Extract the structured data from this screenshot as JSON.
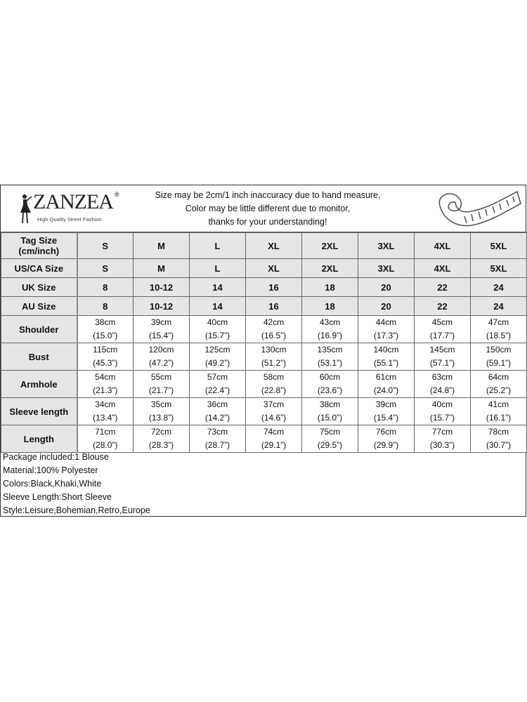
{
  "brand": {
    "name": "ZANZEA",
    "registered": "®",
    "tagline": "High Quality Street Fashion"
  },
  "notes": [
    "Size may be 2cm/1 inch inaccuracy due to hand measure,",
    "Color may be little different due to monitor,",
    "thanks for your understanding!"
  ],
  "icons": {
    "logo": "woman-silhouette-icon",
    "measure": "tape-measure-icon"
  },
  "size_table": {
    "header_rows": [
      {
        "label": "Tag Size\n(cm/inch)",
        "values": [
          "S",
          "M",
          "L",
          "XL",
          "2XL",
          "3XL",
          "4XL",
          "5XL"
        ]
      },
      {
        "label": "US/CA Size",
        "values": [
          "S",
          "M",
          "L",
          "XL",
          "2XL",
          "3XL",
          "4XL",
          "5XL"
        ]
      },
      {
        "label": "UK Size",
        "values": [
          "8",
          "10-12",
          "14",
          "16",
          "18",
          "20",
          "22",
          "24"
        ]
      },
      {
        "label": "AU Size",
        "values": [
          "8",
          "10-12",
          "14",
          "16",
          "18",
          "20",
          "22",
          "24"
        ]
      }
    ],
    "measure_rows": [
      {
        "label": "Shoulder",
        "cm": [
          "38cm",
          "39cm",
          "40cm",
          "42cm",
          "43cm",
          "44cm",
          "45cm",
          "47cm"
        ],
        "inch": [
          "(15.0”)",
          "(15.4”)",
          "(15.7”)",
          "(16.5”)",
          "(16.9”)",
          "(17.3”)",
          "(17.7”)",
          "(18.5”)"
        ]
      },
      {
        "label": "Bust",
        "cm": [
          "115cm",
          "120cm",
          "125cm",
          "130cm",
          "135cm",
          "140cm",
          "145cm",
          "150cm"
        ],
        "inch": [
          "(45.3”)",
          "(47.2”)",
          "(49.2”)",
          "(51.2”)",
          "(53.1”)",
          "(55.1”)",
          "(57.1”)",
          "(59.1”)"
        ]
      },
      {
        "label": "Armhole",
        "cm": [
          "54cm",
          "55cm",
          "57cm",
          "58cm",
          "60cm",
          "61cm",
          "63cm",
          "64cm"
        ],
        "inch": [
          "(21.3”)",
          "(21.7”)",
          "(22.4”)",
          "(22.8”)",
          "(23.6”)",
          "(24.0”)",
          "(24.8”)",
          "(25.2”)"
        ]
      },
      {
        "label": "Sleeve length",
        "cm": [
          "34cm",
          "35cm",
          "36cm",
          "37cm",
          "38cm",
          "39cm",
          "40cm",
          "41cm"
        ],
        "inch": [
          "(13.4”)",
          "(13.8”)",
          "(14.2”)",
          "(14.6”)",
          "(15.0”)",
          "(15.4”)",
          "(15.7”)",
          "(16.1”)"
        ]
      },
      {
        "label": "Length",
        "cm": [
          "71cm",
          "72cm",
          "73cm",
          "74cm",
          "75cm",
          "76cm",
          "77cm",
          "78cm"
        ],
        "inch": [
          "(28.0”)",
          "(28.3”)",
          "(28.7”)",
          "(29.1”)",
          "(29.5”)",
          "(29.9”)",
          "(30.3”)",
          "(30.7”)"
        ]
      }
    ]
  },
  "details": [
    "Package included:1 Blouse",
    "Material:100% Polyester",
    "Colors:Black,Khaki,White",
    "Sleeve Length:Short Sleeve",
    "Style:Leisure,Bohemian,Retro,Europe"
  ]
}
